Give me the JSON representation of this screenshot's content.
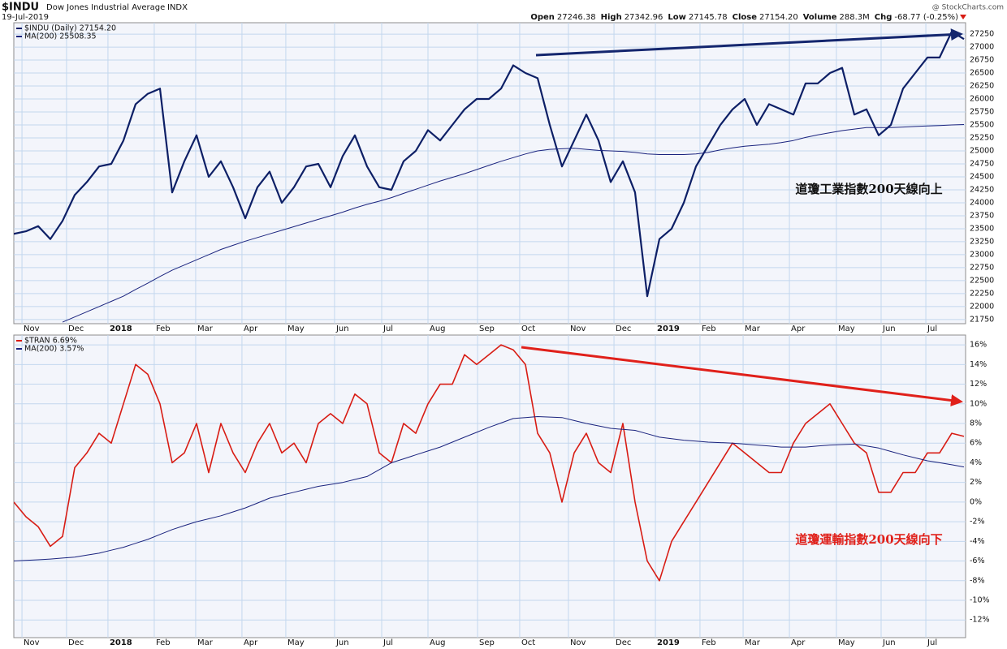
{
  "header": {
    "symbol": "$INDU",
    "name": "Dow Jones Industrial Average",
    "exchange": "INDX",
    "date": "19-Jul-2019",
    "quote": [
      {
        "label": "Open",
        "value": "27246.38"
      },
      {
        "label": "High",
        "value": "27342.96"
      },
      {
        "label": "Low",
        "value": "27145.78"
      },
      {
        "label": "Close",
        "value": "27154.20"
      },
      {
        "label": "Volume",
        "value": "288.3M"
      },
      {
        "label": "Chg",
        "value": "-68.77 (-0.25%)"
      }
    ],
    "copyright": "@ StockCharts.com"
  },
  "chart_data": [
    {
      "type": "line",
      "annotation": "道瓊工業指數200天線向上",
      "annotation_color": "#111111",
      "grid": true,
      "xlim": [
        0,
        78
      ],
      "xticks": [
        {
          "value": 0.67,
          "label": "Nov"
        },
        {
          "value": 4.33,
          "label": "Dec"
        },
        {
          "value": 7.73,
          "label": "2018"
        },
        {
          "value": 11.53,
          "label": "Feb"
        },
        {
          "value": 14.93,
          "label": "Mar"
        },
        {
          "value": 18.73,
          "label": "Apr"
        },
        {
          "value": 22.33,
          "label": "May"
        },
        {
          "value": 26.33,
          "label": "Jun"
        },
        {
          "value": 30.2,
          "label": "Jul"
        },
        {
          "value": 34,
          "label": "Aug"
        },
        {
          "value": 38.07,
          "label": "Sep"
        },
        {
          "value": 41.53,
          "label": "Oct"
        },
        {
          "value": 45.53,
          "label": "Nov"
        },
        {
          "value": 49.27,
          "label": "Dec"
        },
        {
          "value": 52.67,
          "label": "2019"
        },
        {
          "value": 56.33,
          "label": "Feb"
        },
        {
          "value": 59.87,
          "label": "Mar"
        },
        {
          "value": 63.67,
          "label": "Apr"
        },
        {
          "value": 67.53,
          "label": "May"
        },
        {
          "value": 71.2,
          "label": "Jun"
        },
        {
          "value": 74.87,
          "label": "Jul"
        }
      ],
      "ylim": [
        21670,
        27470
      ],
      "yticks": [
        21750,
        22000,
        22250,
        22500,
        22750,
        23000,
        23250,
        23500,
        23750,
        24000,
        24250,
        24500,
        24750,
        25000,
        25250,
        25500,
        25750,
        26000,
        26250,
        26500,
        26750,
        27000,
        27250
      ],
      "series": [
        {
          "name": "$INDU (Daily) 27154.20",
          "color": "#0d1f66",
          "width": 2.2,
          "values": [
            23400,
            23450,
            23550,
            23300,
            23650,
            24150,
            24400,
            24700,
            24750,
            25200,
            25900,
            26100,
            26200,
            24200,
            24800,
            25300,
            24500,
            24800,
            24300,
            23700,
            24300,
            24600,
            24000,
            24300,
            24700,
            24750,
            24300,
            24900,
            25300,
            24700,
            24300,
            24250,
            24800,
            25000,
            25400,
            25200,
            25500,
            25800,
            26000,
            26000,
            26200,
            26650,
            26500,
            26400,
            25500,
            24700,
            25200,
            25700,
            25200,
            24400,
            24800,
            24200,
            22200,
            23300,
            23500,
            24000,
            24700,
            25100,
            25500,
            25800,
            26000,
            25500,
            25900,
            25800,
            25700,
            26300,
            26300,
            26500,
            26600,
            25700,
            25800,
            25300,
            25500,
            26200,
            26500,
            26800,
            26800,
            27300,
            27154
          ]
        },
        {
          "name": "MA(200) 25508.35",
          "color": "#1a237e",
          "width": 1,
          "values": [
            null,
            null,
            null,
            null,
            21700,
            21800,
            21900,
            22000,
            22100,
            22200,
            22330,
            22450,
            22580,
            22700,
            22800,
            22900,
            23000,
            23100,
            23180,
            23260,
            23330,
            23400,
            23470,
            23540,
            23610,
            23680,
            23750,
            23820,
            23900,
            23970,
            24030,
            24100,
            24180,
            24260,
            24340,
            24420,
            24490,
            24560,
            24640,
            24720,
            24800,
            24870,
            24940,
            25000,
            25030,
            25040,
            25050,
            25030,
            25010,
            25000,
            24990,
            24970,
            24940,
            24930,
            24930,
            24930,
            24940,
            24970,
            25020,
            25060,
            25090,
            25110,
            25130,
            25160,
            25200,
            25260,
            25310,
            25350,
            25390,
            25420,
            25450,
            25450,
            25450,
            25460,
            25470,
            25480,
            25490,
            25500,
            25508.35
          ]
        }
      ]
    },
    {
      "type": "line",
      "annotation": "道瓊運輸指數200天線向下",
      "annotation_color": "#e0201a",
      "grid": true,
      "xlim": [
        0,
        78
      ],
      "xticks": [
        {
          "value": 0.67,
          "label": "Nov"
        },
        {
          "value": 4.33,
          "label": "Dec"
        },
        {
          "value": 7.73,
          "label": "2018"
        },
        {
          "value": 11.53,
          "label": "Feb"
        },
        {
          "value": 14.93,
          "label": "Mar"
        },
        {
          "value": 18.73,
          "label": "Apr"
        },
        {
          "value": 22.33,
          "label": "May"
        },
        {
          "value": 26.33,
          "label": "Jun"
        },
        {
          "value": 30.2,
          "label": "Jul"
        },
        {
          "value": 34,
          "label": "Aug"
        },
        {
          "value": 38.07,
          "label": "Sep"
        },
        {
          "value": 41.53,
          "label": "Oct"
        },
        {
          "value": 45.53,
          "label": "Nov"
        },
        {
          "value": 49.27,
          "label": "Dec"
        },
        {
          "value": 52.67,
          "label": "2019"
        },
        {
          "value": 56.33,
          "label": "Feb"
        },
        {
          "value": 59.87,
          "label": "Mar"
        },
        {
          "value": 63.67,
          "label": "Apr"
        },
        {
          "value": 67.53,
          "label": "May"
        },
        {
          "value": 71.2,
          "label": "Jun"
        },
        {
          "value": 74.87,
          "label": "Jul"
        }
      ],
      "ylim": [
        -13.8,
        17
      ],
      "yticks": [
        {
          "value": -12,
          "label": "-12%"
        },
        {
          "value": -10,
          "label": "-10%"
        },
        {
          "value": -8,
          "label": "-8%"
        },
        {
          "value": -6,
          "label": "-6%"
        },
        {
          "value": -4,
          "label": "-4%"
        },
        {
          "value": -2,
          "label": "-2%"
        },
        {
          "value": 0,
          "label": "0%"
        },
        {
          "value": 2,
          "label": "2%"
        },
        {
          "value": 4,
          "label": "4%"
        },
        {
          "value": 6,
          "label": "6%"
        },
        {
          "value": 8,
          "label": "8%"
        },
        {
          "value": 10,
          "label": "10%"
        },
        {
          "value": 12,
          "label": "12%"
        },
        {
          "value": 14,
          "label": "14%"
        },
        {
          "value": 16,
          "label": "16%"
        }
      ],
      "series": [
        {
          "name": "$TRAN 6.69%",
          "color": "#d81c14",
          "width": 1.6,
          "values": [
            0,
            -1.5,
            -2.5,
            -4.5,
            -3.5,
            3.5,
            5,
            7,
            6,
            10,
            14,
            13,
            10,
            4,
            5,
            8,
            3,
            8,
            5,
            3,
            6,
            8,
            5,
            6,
            4,
            8,
            9,
            8,
            11,
            10,
            5,
            4,
            8,
            7,
            10,
            12,
            12,
            15,
            14,
            15,
            16,
            15.5,
            14,
            7,
            5,
            0,
            5,
            7,
            4,
            3,
            8,
            0,
            -6,
            -8,
            -4,
            -2,
            0,
            2,
            4,
            6,
            5,
            4,
            3,
            3,
            6,
            8,
            9,
            10,
            8,
            6,
            5,
            1,
            1,
            3,
            3,
            5,
            5,
            7,
            6.69
          ]
        },
        {
          "name": "MA(200) 3.57%",
          "color": "#1a237e",
          "width": 1,
          "values": [
            -6,
            -5.93,
            -5.87,
            -5.8,
            -5.7,
            -5.6,
            -5.4,
            -5.2,
            -4.9,
            -4.6,
            -4.2,
            -3.8,
            -3.3,
            -2.8,
            -2.4,
            -2,
            -1.7,
            -1.4,
            -1,
            -0.6,
            -0.1,
            0.4,
            0.7,
            1,
            1.3,
            1.6,
            1.8,
            2,
            2.3,
            2.6,
            3.3,
            4,
            4.4,
            4.8,
            5.2,
            5.6,
            6.1,
            6.6,
            7.1,
            7.6,
            8.05,
            8.5,
            8.6,
            8.7,
            8.65,
            8.6,
            8.3,
            8,
            7.75,
            7.5,
            7.4,
            7.3,
            6.95,
            6.6,
            6.45,
            6.3,
            6.2,
            6.1,
            6.05,
            6,
            5.9,
            5.8,
            5.7,
            5.6,
            5.6,
            5.6,
            5.7,
            5.8,
            5.85,
            5.9,
            5.7,
            5.5,
            5.15,
            4.8,
            4.5,
            4.2,
            4,
            3.8,
            3.57
          ]
        }
      ]
    }
  ]
}
